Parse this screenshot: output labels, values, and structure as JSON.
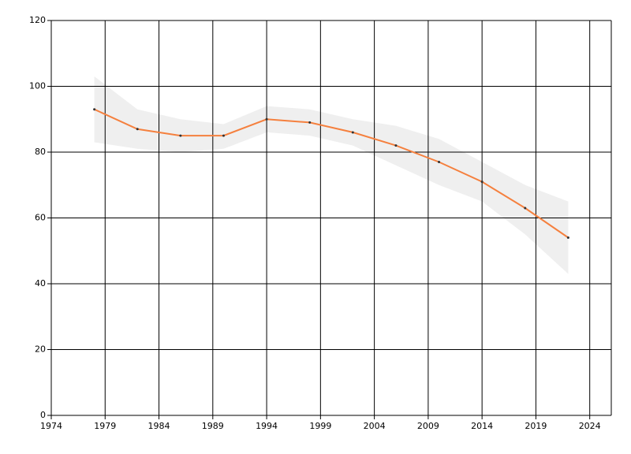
{
  "chart_data": {
    "type": "line",
    "x": [
      1978,
      1982,
      1986,
      1990,
      1994,
      1998,
      2002,
      2006,
      2010,
      2014,
      2018,
      2022
    ],
    "series": [
      {
        "color": "#f5803e",
        "values": [
          93,
          87,
          85,
          85,
          90,
          89,
          86,
          82,
          77,
          71,
          63,
          54
        ]
      }
    ],
    "band": {
      "color": "#efefef",
      "upper": [
        103,
        93,
        90,
        88.5,
        94,
        93,
        90,
        88,
        84,
        77,
        70,
        65
      ],
      "lower": [
        83,
        81,
        80,
        81,
        86,
        85,
        82,
        76,
        70,
        65,
        55,
        43
      ]
    },
    "xlim": [
      1974,
      2026
    ],
    "xticks": [
      1974,
      1979,
      1984,
      1989,
      1994,
      1999,
      2004,
      2009,
      2014,
      2019,
      2024
    ],
    "ylim": [
      0,
      120
    ],
    "yticks": [
      0,
      20,
      40,
      60,
      80,
      100,
      120
    ],
    "grid": true
  }
}
